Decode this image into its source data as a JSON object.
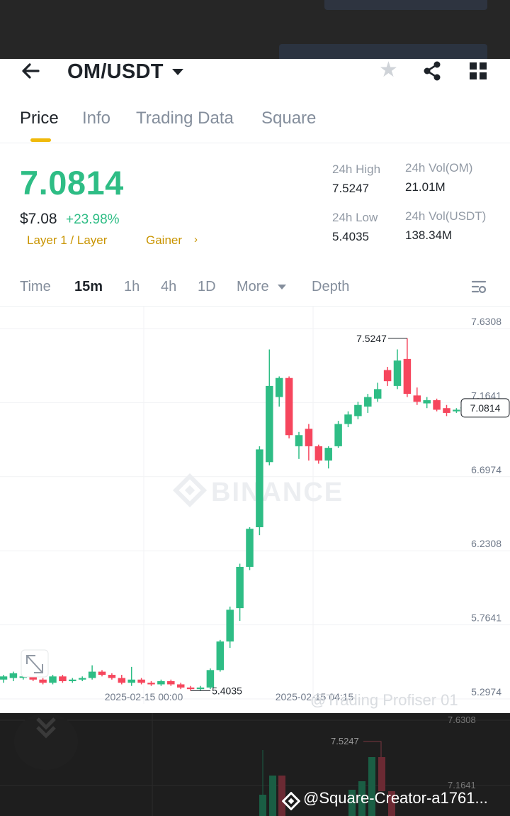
{
  "header": {
    "pair": "OM/USDT"
  },
  "tabs": [
    {
      "label": "Price",
      "active": true
    },
    {
      "label": "Info"
    },
    {
      "label": "Trading Data"
    },
    {
      "label": "Square"
    }
  ],
  "ticker": {
    "last_price": "7.0814",
    "usd_price": "$7.08",
    "change": "+23.98%",
    "tags": [
      "Layer 1 / Layer",
      "Gainer"
    ],
    "high_label": "24h High",
    "high_value": "7.5247",
    "low_label": "24h Low",
    "low_value": "5.4035",
    "vol_om_label": "24h Vol(OM)",
    "vol_om_value": "21.01M",
    "vol_usdt_label": "24h Vol(USDT)",
    "vol_usdt_value": "138.34M"
  },
  "intervals": {
    "items": [
      "Time",
      "15m",
      "1h",
      "4h",
      "1D",
      "More",
      "Depth"
    ],
    "active": "15m"
  },
  "chart_data": {
    "type": "candlestick",
    "y_ticks": [
      "7.6308",
      "7.1641",
      "6.6974",
      "6.2308",
      "5.7641",
      "5.2974"
    ],
    "x_ticks": [
      "2025-02-15 00:00",
      "2025-02-15 04:15"
    ],
    "ylim": [
      5.2974,
      7.6308
    ],
    "last_price_label": "7.0814",
    "high_marker": "7.5247",
    "low_marker": "5.4035",
    "watermark": "BINANCE",
    "candles": [
      [
        5.37,
        5.39,
        5.35,
        5.4
      ],
      [
        5.38,
        5.41,
        5.36,
        5.42
      ],
      [
        5.39,
        5.39,
        5.37,
        5.4
      ],
      [
        5.39,
        5.37,
        5.36,
        5.4
      ],
      [
        5.37,
        5.35,
        5.34,
        5.38
      ],
      [
        5.35,
        5.39,
        5.34,
        5.4
      ],
      [
        5.39,
        5.36,
        5.35,
        5.4
      ],
      [
        5.36,
        5.37,
        5.35,
        5.38
      ],
      [
        5.37,
        5.38,
        5.36,
        5.39
      ],
      [
        5.38,
        5.42,
        5.37,
        5.46
      ],
      [
        5.42,
        5.4,
        5.39,
        5.43
      ],
      [
        5.4,
        5.38,
        5.37,
        5.41
      ],
      [
        5.38,
        5.35,
        5.34,
        5.4
      ],
      [
        5.35,
        5.37,
        5.33,
        5.45
      ],
      [
        5.37,
        5.35,
        5.34,
        5.38
      ],
      [
        5.35,
        5.34,
        5.33,
        5.36
      ],
      [
        5.34,
        5.36,
        5.33,
        5.37
      ],
      [
        5.36,
        5.34,
        5.33,
        5.37
      ],
      [
        5.34,
        5.32,
        5.31,
        5.35
      ],
      [
        5.32,
        5.31,
        5.3,
        5.33
      ],
      [
        5.31,
        5.32,
        5.3,
        5.33
      ],
      [
        5.32,
        5.43,
        5.31,
        5.44
      ],
      [
        5.43,
        5.61,
        5.42,
        5.62
      ],
      [
        5.61,
        5.81,
        5.57,
        5.83
      ],
      [
        5.82,
        6.08,
        5.74,
        6.1
      ],
      [
        6.08,
        6.32,
        6.06,
        6.33
      ],
      [
        6.33,
        6.82,
        6.28,
        6.84
      ],
      [
        6.74,
        7.22,
        6.72,
        7.45
      ],
      [
        7.15,
        7.27,
        7.09,
        7.28
      ],
      [
        7.27,
        6.91,
        6.89,
        7.28
      ],
      [
        6.84,
        6.91,
        6.76,
        6.93
      ],
      [
        6.95,
        6.84,
        6.75,
        6.98
      ],
      [
        6.84,
        6.75,
        6.73,
        6.85
      ],
      [
        6.75,
        6.83,
        6.7,
        6.84
      ],
      [
        6.84,
        6.98,
        6.83,
        7.0
      ],
      [
        6.98,
        7.04,
        6.96,
        7.06
      ],
      [
        7.03,
        7.1,
        7.01,
        7.12
      ],
      [
        7.09,
        7.15,
        7.05,
        7.17
      ],
      [
        7.14,
        7.2,
        7.12,
        7.24
      ],
      [
        7.32,
        7.25,
        7.22,
        7.34
      ],
      [
        7.22,
        7.38,
        7.2,
        7.45
      ],
      [
        7.39,
        7.17,
        7.15,
        7.52
      ],
      [
        7.16,
        7.12,
        7.1,
        7.21
      ],
      [
        7.11,
        7.13,
        7.08,
        7.15
      ],
      [
        7.13,
        7.07,
        7.06,
        7.14
      ],
      [
        7.08,
        7.05,
        7.03,
        7.1
      ],
      [
        7.06,
        7.07,
        7.05,
        7.08
      ],
      [
        7.08,
        7.08,
        7.07,
        7.09
      ]
    ]
  },
  "footer": {
    "watermark_handle": "@Trading Profiser 01",
    "creator": "@Square-Creator-a1761...",
    "mini_high": "7.5247",
    "mini_y_ticks": [
      "7.6308",
      "7.1641"
    ]
  },
  "colors": {
    "up": "#2ebd85",
    "down": "#f6465d",
    "accent": "#f0b90b"
  },
  "icons": [
    "back-arrow-icon",
    "caret-down-icon",
    "star-icon",
    "share-icon",
    "grid-icon",
    "settings-icon",
    "expand-icon",
    "chevron-down-icon",
    "binance-logo-icon"
  ]
}
